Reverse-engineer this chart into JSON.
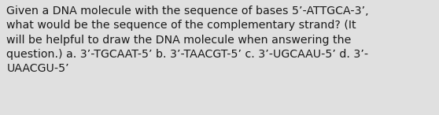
{
  "text": "Given a DNA molecule with the sequence of bases 5’-ATTGCA-3’,\nwhat would be the sequence of the complementary strand? (It\nwill be helpful to draw the DNA molecule when answering the\nquestion.) a. 3’-TGCAAT-5’ b. 3’-TAACGT-5’ c. 3’-UGCAAU-5’ d. 3’-\nUAACGU-5’",
  "background_color": "#e0e0e0",
  "text_color": "#1a1a1a",
  "font_size": 10.2,
  "fig_width": 5.58,
  "fig_height": 1.46,
  "dpi": 100
}
